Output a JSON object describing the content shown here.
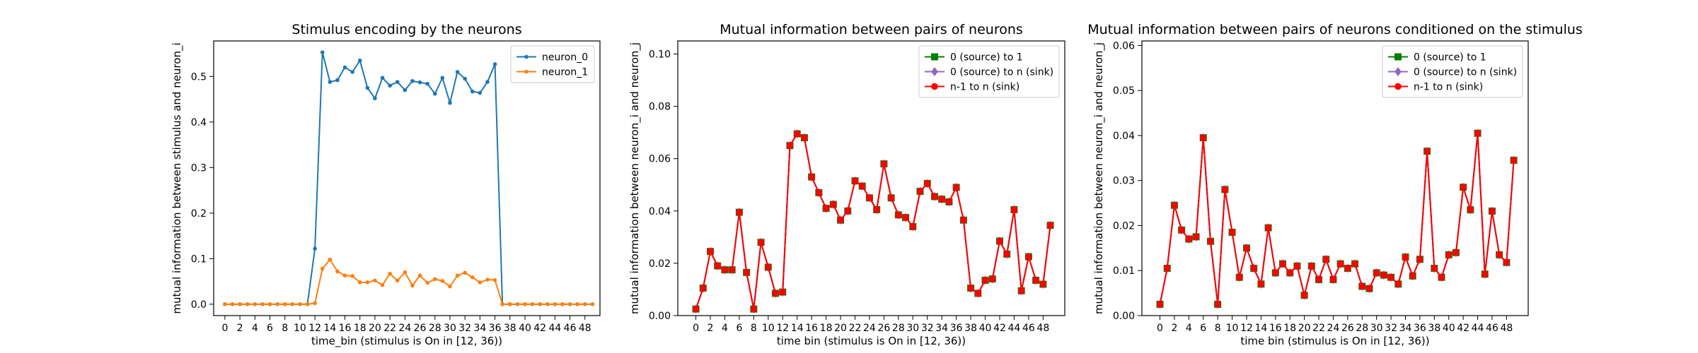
{
  "figure": {
    "background": "#ffffff"
  },
  "chart_data": [
    {
      "type": "line",
      "title": "Stimulus encoding by the neurons",
      "xlabel": "time_bin (stimulus is On in [12, 36))",
      "ylabel": "mutual information between stimulus and neuron_i",
      "xlim": [
        -1.5,
        50
      ],
      "ylim": [
        -0.025,
        0.578
      ],
      "xticks": [
        0,
        2,
        4,
        6,
        8,
        10,
        12,
        14,
        16,
        18,
        20,
        22,
        24,
        26,
        28,
        30,
        32,
        34,
        36,
        38,
        40,
        42,
        44,
        46,
        48
      ],
      "xtick_labels": [
        "0",
        "2",
        "4",
        "6",
        "8",
        "10",
        "12",
        "14",
        "16",
        "18",
        "20",
        "22",
        "24",
        "26",
        "28",
        "30",
        "32",
        "34",
        "36",
        "38",
        "40",
        "42",
        "44",
        "46",
        "48"
      ],
      "yticks": [
        0.0,
        0.1,
        0.2,
        0.3,
        0.4,
        0.5
      ],
      "ytick_labels": [
        "0.0",
        "0.1",
        "0.2",
        "0.3",
        "0.4",
        "0.5"
      ],
      "legend_position": "top-right",
      "x": [
        0,
        1,
        2,
        3,
        4,
        5,
        6,
        7,
        8,
        9,
        10,
        11,
        12,
        13,
        14,
        15,
        16,
        17,
        18,
        19,
        20,
        21,
        22,
        23,
        24,
        25,
        26,
        27,
        28,
        29,
        30,
        31,
        32,
        33,
        34,
        35,
        36,
        37,
        38,
        39,
        40,
        41,
        42,
        43,
        44,
        45,
        46,
        47,
        48,
        49
      ],
      "series": [
        {
          "name": "neuron_0",
          "color": "#1f77b4",
          "marker": "dot",
          "values": [
            0,
            0,
            0,
            0,
            0,
            0,
            0,
            0,
            0,
            0,
            0,
            0,
            0.122,
            0.553,
            0.488,
            0.492,
            0.52,
            0.51,
            0.535,
            0.475,
            0.452,
            0.497,
            0.48,
            0.488,
            0.47,
            0.49,
            0.487,
            0.484,
            0.462,
            0.497,
            0.442,
            0.51,
            0.495,
            0.467,
            0.464,
            0.488,
            0.527,
            0,
            0,
            0,
            0,
            0,
            0,
            0,
            0,
            0,
            0,
            0,
            0,
            0
          ]
        },
        {
          "name": "neuron_1",
          "color": "#ff7f0e",
          "marker": "dot",
          "values": [
            0,
            0,
            0,
            0,
            0,
            0,
            0,
            0,
            0,
            0,
            0,
            0,
            0.002,
            0.078,
            0.098,
            0.072,
            0.063,
            0.062,
            0.048,
            0.048,
            0.052,
            0.042,
            0.067,
            0.052,
            0.07,
            0.041,
            0.063,
            0.047,
            0.055,
            0.051,
            0.039,
            0.063,
            0.069,
            0.059,
            0.048,
            0.054,
            0.053,
            0,
            0,
            0,
            0,
            0,
            0,
            0,
            0,
            0,
            0,
            0,
            0,
            0
          ]
        }
      ]
    },
    {
      "type": "line",
      "title": "Mutual information between pairs of neurons",
      "xlabel": "time bin (stimulus is On in [12, 36))",
      "ylabel": "mutual information between neuron_i and neuron_j",
      "xlim": [
        -2.5,
        51
      ],
      "ylim": [
        0,
        0.105
      ],
      "xticks": [
        0,
        2,
        4,
        6,
        8,
        10,
        12,
        14,
        16,
        18,
        20,
        22,
        24,
        26,
        28,
        30,
        32,
        34,
        36,
        38,
        40,
        42,
        44,
        46,
        48
      ],
      "xtick_labels": [
        "0",
        "2",
        "4",
        "6",
        "8",
        "10",
        "12",
        "14",
        "16",
        "18",
        "20",
        "22",
        "24",
        "26",
        "28",
        "30",
        "32",
        "34",
        "36",
        "38",
        "40",
        "42",
        "44",
        "46",
        "48"
      ],
      "yticks": [
        0.0,
        0.02,
        0.04,
        0.06,
        0.08,
        0.1
      ],
      "ytick_labels": [
        "0.00",
        "0.02",
        "0.04",
        "0.06",
        "0.08",
        "0.10"
      ],
      "legend_position": "top-right",
      "x": [
        0,
        1,
        2,
        3,
        4,
        5,
        6,
        7,
        8,
        9,
        10,
        11,
        12,
        13,
        14,
        15,
        16,
        17,
        18,
        19,
        20,
        21,
        22,
        23,
        24,
        25,
        26,
        27,
        28,
        29,
        30,
        31,
        32,
        33,
        34,
        35,
        36,
        37,
        38,
        39,
        40,
        41,
        42,
        43,
        44,
        45,
        46,
        47,
        48,
        49
      ],
      "series": [
        {
          "name": "0 (source) to 1",
          "color": "#008000",
          "marker": "square",
          "values": [
            0.0025,
            0.0105,
            0.0245,
            0.019,
            0.0175,
            0.0175,
            0.0395,
            0.0165,
            0.0025,
            0.028,
            0.0185,
            0.0085,
            0.009,
            0.065,
            0.0695,
            0.068,
            0.053,
            0.047,
            0.041,
            0.0425,
            0.0365,
            0.04,
            0.0515,
            0.0495,
            0.045,
            0.0405,
            0.058,
            0.045,
            0.0385,
            0.0375,
            0.034,
            0.0475,
            0.0505,
            0.0455,
            0.0445,
            0.0435,
            0.049,
            0.0365,
            0.0105,
            0.0085,
            0.0135,
            0.014,
            0.0285,
            0.0235,
            0.0405,
            0.0095,
            0.0225,
            0.0135,
            0.012,
            0.0345
          ]
        },
        {
          "name": "0 (source) to n (sink)",
          "color": "#9467bd",
          "marker": "diamond",
          "values": [
            0.0025,
            0.0105,
            0.0245,
            0.019,
            0.0175,
            0.0175,
            0.0395,
            0.0165,
            0.0025,
            0.028,
            0.0185,
            0.0085,
            0.009,
            0.065,
            0.0695,
            0.068,
            0.053,
            0.047,
            0.041,
            0.0425,
            0.0365,
            0.04,
            0.0515,
            0.0495,
            0.045,
            0.0405,
            0.058,
            0.045,
            0.0385,
            0.0375,
            0.034,
            0.0475,
            0.0505,
            0.0455,
            0.0445,
            0.0435,
            0.049,
            0.0365,
            0.0105,
            0.0085,
            0.0135,
            0.014,
            0.0285,
            0.0235,
            0.0405,
            0.0095,
            0.0225,
            0.0135,
            0.012,
            0.0345
          ]
        },
        {
          "name": "n-1 to n (sink)",
          "color": "#ff0000",
          "marker": "circle",
          "values": [
            0.0025,
            0.0105,
            0.0245,
            0.019,
            0.0175,
            0.0175,
            0.0395,
            0.0165,
            0.0025,
            0.028,
            0.0185,
            0.0085,
            0.009,
            0.065,
            0.0695,
            0.068,
            0.053,
            0.047,
            0.041,
            0.0425,
            0.0365,
            0.04,
            0.0515,
            0.0495,
            0.045,
            0.0405,
            0.058,
            0.045,
            0.0385,
            0.0375,
            0.034,
            0.0475,
            0.0505,
            0.0455,
            0.0445,
            0.0435,
            0.049,
            0.0365,
            0.0105,
            0.0085,
            0.0135,
            0.014,
            0.0285,
            0.0235,
            0.0405,
            0.0095,
            0.0225,
            0.0135,
            0.012,
            0.0345
          ]
        }
      ]
    },
    {
      "type": "line",
      "title": "Mutual information between pairs of neurons conditioned on the stimulus",
      "xlabel": "time bin (stimulus is On in [12, 36))",
      "ylabel": "mutual information between neuron_i and neuron_j",
      "xlim": [
        -2.5,
        51
      ],
      "ylim": [
        0,
        0.061
      ],
      "xticks": [
        0,
        2,
        4,
        6,
        8,
        10,
        12,
        14,
        16,
        18,
        20,
        22,
        24,
        26,
        28,
        30,
        32,
        34,
        36,
        38,
        40,
        42,
        44,
        46,
        48
      ],
      "xtick_labels": [
        "0",
        "2",
        "4",
        "6",
        "8",
        "10",
        "12",
        "14",
        "16",
        "18",
        "20",
        "22",
        "24",
        "26",
        "28",
        "30",
        "32",
        "34",
        "36",
        "38",
        "40",
        "42",
        "44",
        "46",
        "48"
      ],
      "yticks": [
        0.0,
        0.01,
        0.02,
        0.03,
        0.04,
        0.05,
        0.06
      ],
      "ytick_labels": [
        "0.00",
        "0.01",
        "0.02",
        "0.03",
        "0.04",
        "0.05",
        "0.06"
      ],
      "legend_position": "top-right",
      "x": [
        0,
        1,
        2,
        3,
        4,
        5,
        6,
        7,
        8,
        9,
        10,
        11,
        12,
        13,
        14,
        15,
        16,
        17,
        18,
        19,
        20,
        21,
        22,
        23,
        24,
        25,
        26,
        27,
        28,
        29,
        30,
        31,
        32,
        33,
        34,
        35,
        36,
        37,
        38,
        39,
        40,
        41,
        42,
        43,
        44,
        45,
        46,
        47,
        48,
        49
      ],
      "series": [
        {
          "name": "0 (source) to 1",
          "color": "#008000",
          "marker": "square",
          "values": [
            0.0025,
            0.0105,
            0.0245,
            0.019,
            0.017,
            0.0175,
            0.0395,
            0.0165,
            0.0025,
            0.028,
            0.0185,
            0.0085,
            0.015,
            0.0105,
            0.007,
            0.0195,
            0.0095,
            0.0115,
            0.0095,
            0.011,
            0.0045,
            0.011,
            0.008,
            0.0125,
            0.008,
            0.0115,
            0.0105,
            0.0115,
            0.0065,
            0.006,
            0.0095,
            0.009,
            0.0085,
            0.007,
            0.013,
            0.0088,
            0.0125,
            0.0365,
            0.0105,
            0.0085,
            0.0135,
            0.014,
            0.0285,
            0.0235,
            0.0405,
            0.0092,
            0.0232,
            0.0135,
            0.0118,
            0.0345
          ]
        },
        {
          "name": "0 (source) to n (sink)",
          "color": "#9467bd",
          "marker": "diamond",
          "values": [
            0.0025,
            0.0105,
            0.0245,
            0.019,
            0.017,
            0.0175,
            0.0395,
            0.0165,
            0.0025,
            0.028,
            0.0185,
            0.0085,
            0.015,
            0.0105,
            0.007,
            0.0195,
            0.0095,
            0.0115,
            0.0095,
            0.011,
            0.0045,
            0.011,
            0.008,
            0.0125,
            0.008,
            0.0115,
            0.0105,
            0.0115,
            0.0065,
            0.006,
            0.0095,
            0.009,
            0.0085,
            0.007,
            0.013,
            0.0088,
            0.0125,
            0.0365,
            0.0105,
            0.0085,
            0.0135,
            0.014,
            0.0285,
            0.0235,
            0.0405,
            0.0092,
            0.0232,
            0.0135,
            0.0118,
            0.0345
          ]
        },
        {
          "name": "n-1 to n (sink)",
          "color": "#ff0000",
          "marker": "circle",
          "values": [
            0.0025,
            0.0105,
            0.0245,
            0.019,
            0.017,
            0.0175,
            0.0395,
            0.0165,
            0.0025,
            0.028,
            0.0185,
            0.0085,
            0.015,
            0.0105,
            0.007,
            0.0195,
            0.0095,
            0.0115,
            0.0095,
            0.011,
            0.0045,
            0.011,
            0.008,
            0.0125,
            0.008,
            0.0115,
            0.0105,
            0.0115,
            0.0065,
            0.006,
            0.0095,
            0.009,
            0.0085,
            0.007,
            0.013,
            0.0088,
            0.0125,
            0.0365,
            0.0105,
            0.0085,
            0.0135,
            0.014,
            0.0285,
            0.0235,
            0.0405,
            0.0092,
            0.0232,
            0.0135,
            0.0118,
            0.0345
          ]
        }
      ]
    }
  ]
}
